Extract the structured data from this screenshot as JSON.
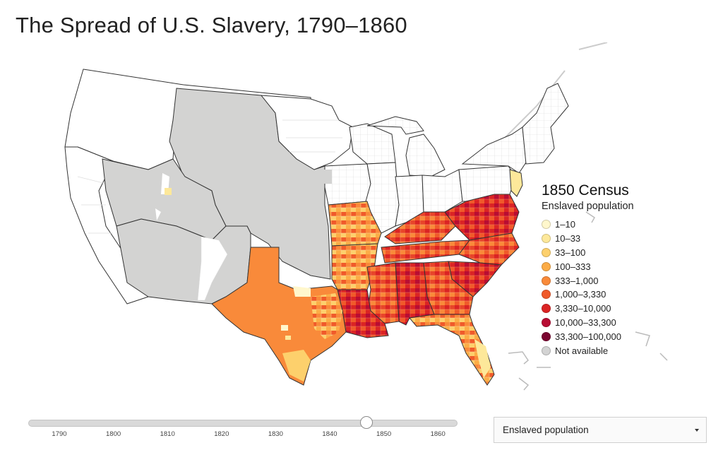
{
  "title": "The Spread of U.S. Slavery, 1790–1860",
  "legend": {
    "title": "1850 Census",
    "subtitle": "Enslaved population",
    "items": [
      {
        "label": "1–10",
        "color": "#fff7cc"
      },
      {
        "label": "10–33",
        "color": "#fde89a"
      },
      {
        "label": "33–100",
        "color": "#fdd06c"
      },
      {
        "label": "100–333",
        "color": "#fcac46"
      },
      {
        "label": "333–1,000",
        "color": "#f98a3a"
      },
      {
        "label": "1,000–3,330",
        "color": "#f05a2a"
      },
      {
        "label": "3,330–10,000",
        "color": "#db2424"
      },
      {
        "label": "10,000–33,300",
        "color": "#b80d33"
      },
      {
        "label": "33,300–100,000",
        "color": "#7a0530"
      },
      {
        "label": "Not available",
        "color": "#d3d3d3"
      }
    ]
  },
  "slider": {
    "ticks": [
      "1790",
      "1800",
      "1810",
      "1820",
      "1830",
      "1840",
      "1850",
      "1860"
    ],
    "selected_year": "1850"
  },
  "dropdown": {
    "selected": "Enslaved population"
  },
  "map": {
    "census_year": "1850",
    "colors": {
      "free_state": "#ffffff",
      "territory_not_available": "#d3d3d2",
      "border": "#333333",
      "county_line": "#dddddd",
      "texas": "#f98a3a",
      "new_jersey": "#fde89a"
    }
  }
}
